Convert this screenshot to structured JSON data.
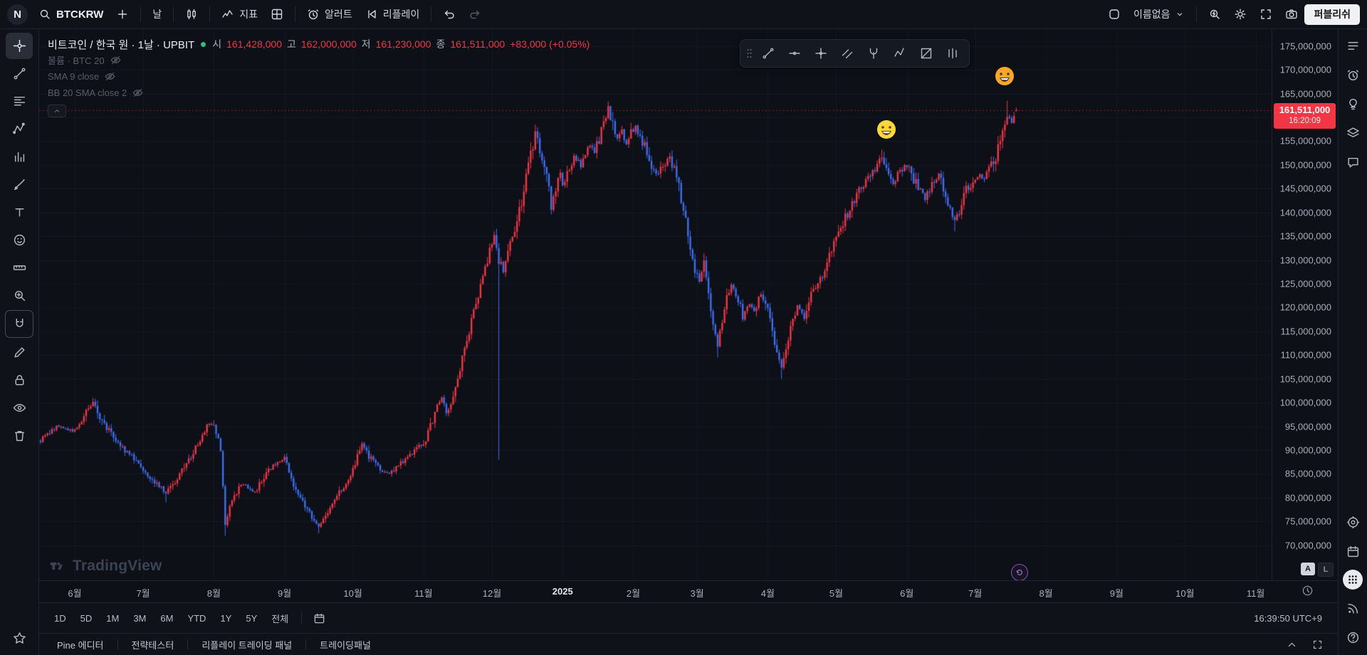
{
  "top_toolbar": {
    "logo_letter": "N",
    "symbol": "BTCKRW",
    "interval": "날",
    "indicators_label": "지표",
    "alert_label": "알러트",
    "replay_label": "리플레이",
    "layout_name": "이름없음",
    "publish_label": "퍼블리쉬"
  },
  "legend": {
    "title": "비트코인 / 한국 원 · 1날 · UPBIT",
    "ohlc": {
      "o_label": "시",
      "o": "161,428,000",
      "h_label": "고",
      "h": "162,000,000",
      "l_label": "저",
      "l": "161,230,000",
      "c_label": "종",
      "c": "161,511,000",
      "change": "+83,000 (+0.05%)"
    },
    "indicators": [
      "볼륨 · BTC 20",
      "SMA 9 close",
      "BB 20 SMA close 2"
    ]
  },
  "price_tag": {
    "value": "161,511,000",
    "countdown": "16:20:09"
  },
  "price_axis": [
    {
      "v": 175,
      "label": "175,000,000"
    },
    {
      "v": 170,
      "label": "170,000,000"
    },
    {
      "v": 165,
      "label": "165,000,000"
    },
    {
      "v": 160,
      "label": "160,000,000"
    },
    {
      "v": 155,
      "label": "155,000,000"
    },
    {
      "v": 150,
      "label": "150,000,000"
    },
    {
      "v": 145,
      "label": "145,000,000"
    },
    {
      "v": 140,
      "label": "140,000,000"
    },
    {
      "v": 135,
      "label": "135,000,000"
    },
    {
      "v": 130,
      "label": "130,000,000"
    },
    {
      "v": 125,
      "label": "125,000,000"
    },
    {
      "v": 120,
      "label": "120,000,000"
    },
    {
      "v": 115,
      "label": "115,000,000"
    },
    {
      "v": 110,
      "label": "110,000,000"
    },
    {
      "v": 105,
      "label": "105,000,000"
    },
    {
      "v": 100,
      "label": "100,000,000"
    },
    {
      "v": 95,
      "label": "95,000,000"
    },
    {
      "v": 90,
      "label": "90,000,000"
    },
    {
      "v": 85,
      "label": "85,000,000"
    },
    {
      "v": 80,
      "label": "80,000,000"
    },
    {
      "v": 75,
      "label": "75,000,000"
    },
    {
      "v": 70,
      "label": "70,000,000"
    }
  ],
  "time_axis": [
    {
      "label": "6월",
      "d": 0
    },
    {
      "label": "7월",
      "d": 30
    },
    {
      "label": "8월",
      "d": 61
    },
    {
      "label": "9월",
      "d": 92
    },
    {
      "label": "10월",
      "d": 122
    },
    {
      "label": "11월",
      "d": 153
    },
    {
      "label": "12월",
      "d": 183
    },
    {
      "label": "2025",
      "d": 214,
      "year": true
    },
    {
      "label": "2월",
      "d": 245
    },
    {
      "label": "3월",
      "d": 273
    },
    {
      "label": "4월",
      "d": 304
    },
    {
      "label": "5월",
      "d": 334
    },
    {
      "label": "6월",
      "d": 365
    },
    {
      "label": "7월",
      "d": 395
    },
    {
      "label": "8월",
      "d": 426
    },
    {
      "label": "9월",
      "d": 457
    },
    {
      "label": "10월",
      "d": 487
    },
    {
      "label": "11월",
      "d": 518
    }
  ],
  "range_bar": {
    "ranges": [
      "1D",
      "5D",
      "1M",
      "3M",
      "6M",
      "YTD",
      "1Y",
      "5Y",
      "전체"
    ],
    "clock": "16:39:50 UTC+9"
  },
  "bottom_tabs": [
    "Pine 에디터",
    "전략테스터",
    "리플레이 트레이딩 패널",
    "트레이딩패널"
  ],
  "watermark": "TradingView",
  "scale_buttons": {
    "auto": "A",
    "log": "L"
  },
  "emojis": [
    {
      "char": "😃",
      "d": 356,
      "price": 157.5
    },
    {
      "char": "🤑",
      "d": 408,
      "price": 168.7
    }
  ],
  "left_toolbar_tools": [
    "crosshair",
    "trend-line",
    "fib-retracement",
    "pattern",
    "forecast",
    "brush",
    "text",
    "emoji",
    "ruler",
    "zoom-in",
    "magnet",
    "draw",
    "lock",
    "eye",
    "trash",
    "star"
  ],
  "right_sidebar_tools": [
    "watchlist",
    "alerts",
    "ideas",
    "object-tree",
    "chat",
    "advisor",
    "calendar",
    "apps",
    "streams",
    "help"
  ],
  "chart_data": {
    "type": "candlestick",
    "title": "비트코인 / 한국 원 · 1날 · UPBIT",
    "symbol": "BTCKRW",
    "exchange": "UPBIT",
    "interval": "1D",
    "price_unit": "KRW, values in millions",
    "ylim": [
      70,
      175
    ],
    "grid": "faint",
    "up_color": "#f23645",
    "down_color": "#3e6ef2",
    "day0": "2024-06-01",
    "d_start": -15,
    "d_end": 413,
    "today_ohlc": {
      "o": 161.428,
      "h": 162.0,
      "l": 161.23,
      "c": 161.511
    },
    "anchors": [
      [
        -15,
        92
      ],
      [
        -8,
        95
      ],
      [
        0,
        94
      ],
      [
        5,
        98
      ],
      [
        8,
        100
      ],
      [
        12,
        96
      ],
      [
        17,
        93
      ],
      [
        22,
        90
      ],
      [
        27,
        88
      ],
      [
        32,
        85
      ],
      [
        36,
        83
      ],
      [
        40,
        81
      ],
      [
        45,
        84
      ],
      [
        50,
        88
      ],
      [
        55,
        92
      ],
      [
        58,
        95
      ],
      [
        61,
        96
      ],
      [
        64,
        90
      ],
      [
        66,
        74
      ],
      [
        69,
        80
      ],
      [
        74,
        83
      ],
      [
        79,
        81
      ],
      [
        85,
        86
      ],
      [
        88,
        87
      ],
      [
        92,
        88
      ],
      [
        96,
        83
      ],
      [
        100,
        79
      ],
      [
        104,
        76
      ],
      [
        107,
        74
      ],
      [
        111,
        77
      ],
      [
        116,
        81
      ],
      [
        120,
        84
      ],
      [
        122,
        86
      ],
      [
        126,
        91
      ],
      [
        130,
        88
      ],
      [
        134,
        86
      ],
      [
        138,
        85
      ],
      [
        142,
        87
      ],
      [
        147,
        89
      ],
      [
        150,
        91
      ],
      [
        153,
        91
      ],
      [
        156,
        95
      ],
      [
        159,
        99
      ],
      [
        161,
        101
      ],
      [
        163,
        98
      ],
      [
        165,
        100
      ],
      [
        168,
        105
      ],
      [
        171,
        111
      ],
      [
        174,
        117
      ],
      [
        177,
        123
      ],
      [
        180,
        128
      ],
      [
        182,
        132
      ],
      [
        184,
        135
      ],
      [
        186,
        130
      ],
      [
        188,
        128
      ],
      [
        190,
        132
      ],
      [
        192,
        135
      ],
      [
        194,
        138
      ],
      [
        196,
        142
      ],
      [
        198,
        147
      ],
      [
        200,
        152
      ],
      [
        202,
        157
      ],
      [
        204,
        153
      ],
      [
        206,
        150
      ],
      [
        208,
        146
      ],
      [
        209,
        141
      ],
      [
        211,
        145
      ],
      [
        213,
        148
      ],
      [
        214,
        146
      ],
      [
        216,
        148
      ],
      [
        219,
        152
      ],
      [
        222,
        150
      ],
      [
        225,
        154
      ],
      [
        228,
        153
      ],
      [
        231,
        157
      ],
      [
        233,
        160
      ],
      [
        234,
        162
      ],
      [
        236,
        158
      ],
      [
        238,
        155
      ],
      [
        240,
        157
      ],
      [
        242,
        154
      ],
      [
        244,
        157
      ],
      [
        246,
        158
      ],
      [
        249,
        155
      ],
      [
        252,
        151
      ],
      [
        255,
        148
      ],
      [
        258,
        150
      ],
      [
        261,
        152
      ],
      [
        264,
        147
      ],
      [
        266,
        143
      ],
      [
        268,
        138
      ],
      [
        270,
        133
      ],
      [
        272,
        128
      ],
      [
        274,
        126
      ],
      [
        276,
        130
      ],
      [
        278,
        122
      ],
      [
        281,
        115
      ],
      [
        282,
        112
      ],
      [
        285,
        120
      ],
      [
        288,
        125
      ],
      [
        291,
        122
      ],
      [
        293,
        118
      ],
      [
        296,
        121
      ],
      [
        298,
        119
      ],
      [
        301,
        123
      ],
      [
        303,
        121
      ],
      [
        305,
        118
      ],
      [
        307,
        112
      ],
      [
        310,
        107
      ],
      [
        312,
        112
      ],
      [
        315,
        117
      ],
      [
        317,
        120
      ],
      [
        320,
        118
      ],
      [
        322,
        122
      ],
      [
        325,
        124
      ],
      [
        328,
        127
      ],
      [
        330,
        130
      ],
      [
        333,
        133
      ],
      [
        335,
        136
      ],
      [
        338,
        139
      ],
      [
        340,
        141
      ],
      [
        343,
        144
      ],
      [
        346,
        146
      ],
      [
        349,
        148
      ],
      [
        352,
        150
      ],
      [
        354,
        152
      ],
      [
        357,
        148
      ],
      [
        359,
        146
      ],
      [
        362,
        149
      ],
      [
        365,
        150
      ],
      [
        367,
        148
      ],
      [
        370,
        145
      ],
      [
        373,
        143
      ],
      [
        376,
        146
      ],
      [
        379,
        148
      ],
      [
        381,
        145
      ],
      [
        384,
        141
      ],
      [
        386,
        138
      ],
      [
        389,
        142
      ],
      [
        391,
        145
      ],
      [
        394,
        146
      ],
      [
        396,
        148
      ],
      [
        399,
        147
      ],
      [
        402,
        150
      ],
      [
        404,
        152
      ],
      [
        407,
        156
      ],
      [
        409,
        161
      ],
      [
        411,
        159
      ],
      [
        413,
        161.5
      ]
    ],
    "wicks": [
      {
        "d": 8,
        "h": 101
      },
      {
        "d": 40,
        "l": 79
      },
      {
        "d": 66,
        "l": 72
      },
      {
        "d": 107,
        "l": 72.5
      },
      {
        "d": 186,
        "l": 88
      },
      {
        "d": 202,
        "h": 158.5
      },
      {
        "d": 234,
        "h": 163.3
      },
      {
        "d": 282,
        "l": 109.5
      },
      {
        "d": 310,
        "l": 105
      },
      {
        "d": 354,
        "h": 153.2
      },
      {
        "d": 386,
        "l": 136
      },
      {
        "d": 409,
        "h": 163.5
      }
    ]
  }
}
